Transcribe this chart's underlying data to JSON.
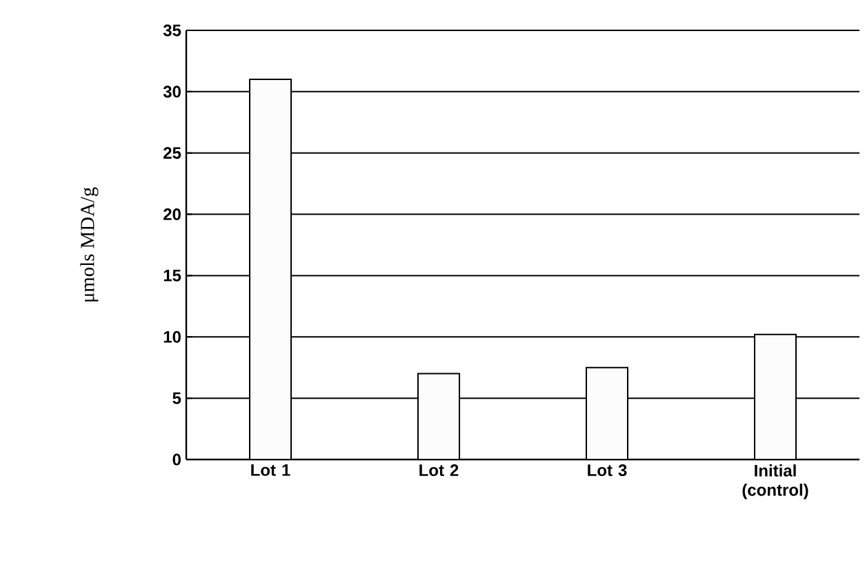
{
  "chart_data": {
    "type": "bar",
    "ylabel": "μmols MDA/g",
    "categories": [
      "Lot 1",
      "Lot 2",
      "Lot 3",
      "Initial (control)"
    ],
    "values": [
      31,
      7,
      7.5,
      10.2
    ],
    "color": "#fcfcfc",
    "ylim": [
      0,
      35
    ],
    "yticks": [
      0,
      5,
      10,
      15,
      20,
      25,
      30,
      35
    ],
    "grid": "y"
  }
}
